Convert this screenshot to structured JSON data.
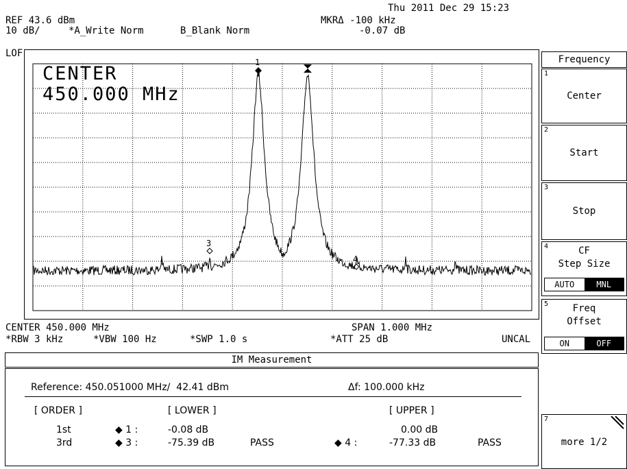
{
  "status": {
    "datetime": "Thu 2011 Dec 29 15:23"
  },
  "header": {
    "ref_level": "REF 43.6 dBm",
    "scale": "10 dB/",
    "trace_a": "*A_Write Norm",
    "trace_b": "B_Blank Norm",
    "marker_label": "MKRΔ -100 kHz",
    "marker_value": "-0.07 dB",
    "lof": "LOF"
  },
  "display": {
    "active_function": "CENTER",
    "active_value": "450.000 MHz",
    "markers": [
      "1",
      "3",
      "4"
    ]
  },
  "footer": {
    "center": "CENTER 450.000 MHz",
    "span": "SPAN 1.000 MHz",
    "rbw": "*RBW 3 kHz",
    "vbw": "*VBW 100 Hz",
    "swp": "*SWP 1.0 s",
    "att": "*ATT 25 dB",
    "uncal": "UNCAL"
  },
  "softkeys": {
    "title": "Frequency",
    "items": [
      {
        "num": "1",
        "label": "Center"
      },
      {
        "num": "2",
        "label": "Start"
      },
      {
        "num": "3",
        "label": "Stop"
      },
      {
        "num": "4",
        "label_line1": "CF",
        "label_line2": "Step Size",
        "opt_a": "AUTO",
        "opt_b": "MNL"
      },
      {
        "num": "5",
        "label_line1": "Freq",
        "label_line2": "Offset",
        "opt_a": "ON",
        "opt_b": "OFF"
      },
      {
        "num": "7",
        "label": "more 1/2"
      }
    ]
  },
  "im": {
    "title": "IM Measurement",
    "reference": "Reference: 450.051000 MHz/  42.41 dBm",
    "delta_f": "Δf: 100.000 kHz",
    "col_order": "[ ORDER ]",
    "col_lower": "[ LOWER ]",
    "col_upper": "[ UPPER ]",
    "rows": [
      {
        "order": "1st",
        "lower_marker": "◆ 1 :",
        "lower_value": "-0.08 dB",
        "lower_result": "",
        "upper_marker": "",
        "upper_value": "0.00 dB",
        "upper_result": ""
      },
      {
        "order": "3rd",
        "lower_marker": "◆ 3 :",
        "lower_value": "-75.39 dB",
        "lower_result": "PASS",
        "upper_marker": "◆ 4 :",
        "upper_value": "-77.33 dB",
        "upper_result": "PASS"
      }
    ]
  }
}
